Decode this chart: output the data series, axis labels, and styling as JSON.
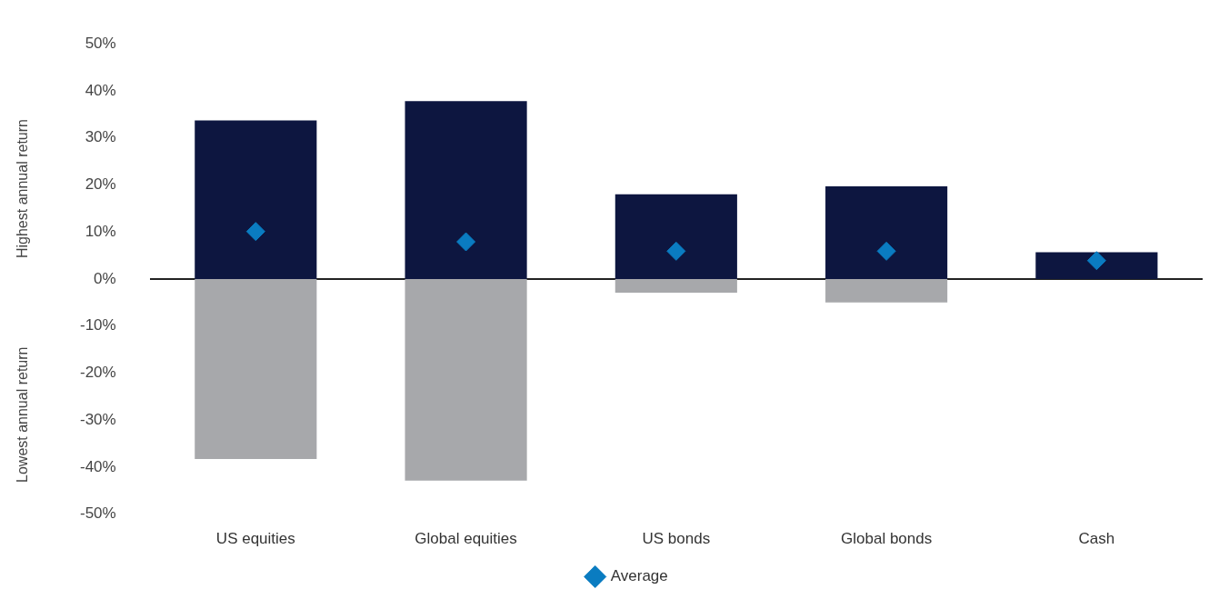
{
  "chart_data": {
    "type": "bar",
    "stacked": true,
    "ylabel": "Highest annual return",
    "annotations": [
      "Lowest annual return"
    ],
    "categories": [
      "US equities",
      "Global equities",
      "US bonds",
      "Global bonds",
      "Cash"
    ],
    "series": [
      {
        "color": "#0d1640",
        "values": [
          33.7,
          37.8,
          18.0,
          19.7,
          5.7
        ]
      },
      {
        "color": "#a7a8ab",
        "values": [
          -38.3,
          -42.9,
          -2.9,
          -5.0,
          0
        ]
      },
      {
        "type": "scatter",
        "name": "Average",
        "color": "#0a7cc1",
        "marker": "diamond",
        "x": [
          "US equities",
          "Global equities",
          "US bonds",
          "Global bonds",
          "Cash"
        ],
        "values": [
          10.1,
          7.9,
          5.9,
          5.9,
          3.9
        ]
      }
    ],
    "ylim": [
      -50,
      50
    ],
    "yticks": [
      {
        "value": 50,
        "label": "50%"
      },
      {
        "value": 40,
        "label": "40%"
      },
      {
        "value": 30,
        "label": "30%"
      },
      {
        "value": 20,
        "label": "20%"
      },
      {
        "value": 10,
        "label": "10%"
      },
      {
        "value": 0,
        "label": "0%"
      },
      {
        "value": -10,
        "label": "-10%"
      },
      {
        "value": -20,
        "label": "-20%"
      },
      {
        "value": -30,
        "label": "-30%"
      },
      {
        "value": -40,
        "label": "-40%"
      },
      {
        "value": -50,
        "label": "-50%"
      }
    ],
    "legend": "bottom"
  }
}
